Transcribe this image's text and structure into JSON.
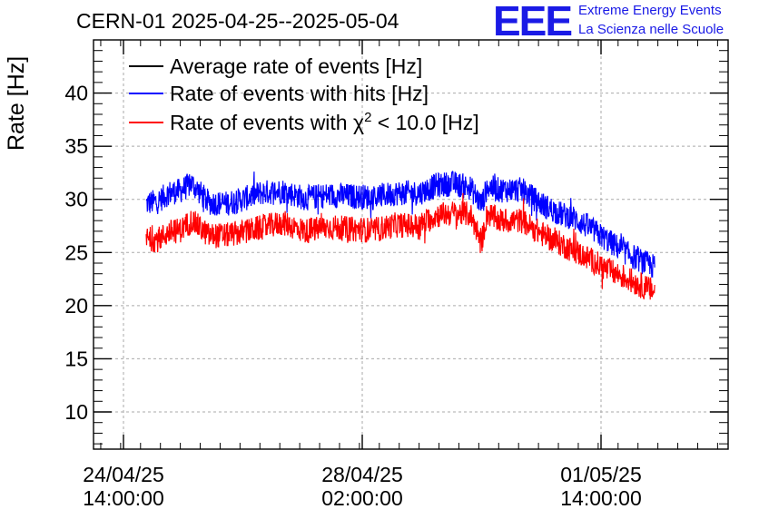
{
  "header": {
    "title": "CERN-01 2025-04-25--2025-05-04",
    "logo_text": "EEE",
    "logo_line1": "Extreme Energy Events",
    "logo_line2": "La Scienza nelle Scuole",
    "logo_color": "#1a1ae6"
  },
  "chart_data": {
    "type": "line",
    "ylabel": "Rate [Hz]",
    "xlabel": "",
    "ylim": [
      6.5,
      45
    ],
    "yticks": [
      10,
      15,
      20,
      25,
      30,
      35,
      40
    ],
    "xticks": [
      {
        "t": 0,
        "line1": "24/04/25",
        "line2": "14:00:00"
      },
      {
        "t": 84,
        "line1": "28/04/25",
        "line2": "02:00:00"
      },
      {
        "t": 168,
        "line1": "01/05/25",
        "line2": "14:00:00"
      }
    ],
    "x_units": "hours after 24/04/25 14:00:00",
    "grid": true,
    "legend_position": "top-left",
    "series": [
      {
        "name": "Average rate of events [Hz]",
        "color": "#000000",
        "legend_label": "Average rate of events [Hz]",
        "x": [],
        "y": []
      },
      {
        "name": "Rate of events with hits [Hz]",
        "color": "#0000ff",
        "legend_label": "Rate of events with hits [Hz]",
        "x": [
          8,
          12,
          16,
          20,
          24,
          30,
          36,
          42,
          48,
          56,
          64,
          72,
          80,
          88,
          96,
          104,
          110,
          116,
          122,
          126,
          128,
          132,
          140,
          148,
          154,
          158,
          164,
          170,
          176,
          182,
          187
        ],
        "y": [
          29.6,
          29.8,
          30.6,
          30.8,
          31.5,
          29.7,
          29.6,
          30.0,
          30.6,
          30.8,
          30.1,
          30.4,
          30.3,
          30.2,
          30.6,
          30.6,
          31.3,
          31.5,
          31.1,
          29.5,
          31.2,
          30.9,
          30.9,
          29.4,
          28.6,
          28.3,
          27.3,
          26.2,
          25.1,
          24.2,
          23.6
        ]
      },
      {
        "name": "Rate of events with χ2 < 10.0 [Hz]",
        "color": "#ff0000",
        "legend_label_main": "Rate of events with χ",
        "legend_label_sup": "2",
        "legend_label_tail": " < 10.0 [Hz]",
        "x": [
          8,
          12,
          16,
          20,
          24,
          30,
          36,
          42,
          48,
          56,
          64,
          72,
          80,
          88,
          96,
          104,
          110,
          116,
          122,
          126,
          128,
          132,
          140,
          148,
          154,
          158,
          164,
          170,
          176,
          182,
          187
        ],
        "y": [
          26.3,
          26.2,
          26.9,
          27.1,
          28.0,
          26.6,
          26.6,
          26.9,
          27.3,
          27.8,
          27.0,
          27.4,
          27.2,
          27.1,
          27.6,
          27.5,
          28.5,
          28.7,
          28.6,
          26.0,
          28.7,
          28.0,
          28.0,
          26.6,
          25.8,
          25.2,
          24.4,
          23.4,
          22.7,
          21.9,
          21.3
        ]
      }
    ]
  }
}
